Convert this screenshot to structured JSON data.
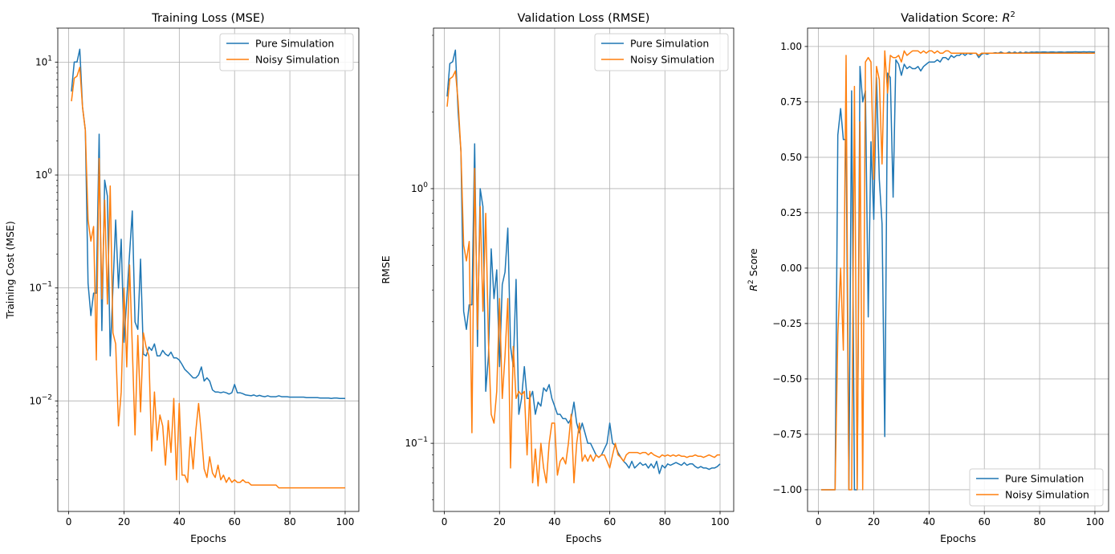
{
  "colors": {
    "pure": "#1f77b4",
    "noisy": "#ff7f0e",
    "grid": "#b0b0b0"
  },
  "chart_data": [
    {
      "type": "line",
      "title": "Training Loss (MSE)",
      "xlabel": "Epochs",
      "ylabel": "Training Cost (MSE)",
      "yscale": "log",
      "xlim": [
        -3.95,
        104.95
      ],
      "ylim": [
        0.00105,
        20
      ],
      "xticks": [
        0,
        20,
        40,
        60,
        80,
        100
      ],
      "yticks": [
        -2,
        -1,
        0,
        1
      ],
      "ytick_format": "power10",
      "grid": true,
      "legend": "top-right",
      "x_start": 1,
      "series": [
        {
          "name": "Pure Simulation",
          "values": [
            5.5,
            10,
            10,
            13,
            4,
            2.5,
            0.11,
            0.057,
            0.09,
            0.09,
            2.3,
            0.042,
            0.9,
            0.65,
            0.025,
            0.1,
            0.4,
            0.1,
            0.27,
            0.033,
            0.08,
            0.2,
            0.48,
            0.05,
            0.043,
            0.18,
            0.026,
            0.025,
            0.03,
            0.028,
            0.032,
            0.025,
            0.025,
            0.028,
            0.026,
            0.025,
            0.027,
            0.024,
            0.024,
            0.023,
            0.021,
            0.019,
            0.018,
            0.017,
            0.016,
            0.016,
            0.017,
            0.02,
            0.015,
            0.016,
            0.015,
            0.0125,
            0.012,
            0.012,
            0.0118,
            0.012,
            0.0118,
            0.0115,
            0.0118,
            0.014,
            0.0118,
            0.0118,
            0.0116,
            0.0113,
            0.0112,
            0.0111,
            0.0113,
            0.011,
            0.0112,
            0.011,
            0.0109,
            0.0111,
            0.0109,
            0.0109,
            0.0109,
            0.0111,
            0.0109,
            0.0109,
            0.0109,
            0.0108,
            0.0108,
            0.0108,
            0.0108,
            0.0108,
            0.0108,
            0.0107,
            0.0107,
            0.0107,
            0.0107,
            0.0107,
            0.0106,
            0.0106,
            0.0106,
            0.0106,
            0.0105,
            0.0106,
            0.0106,
            0.0105,
            0.0105,
            0.0105
          ]
        },
        {
          "name": "Noisy Simulation",
          "values": [
            4.5,
            7.2,
            7.5,
            9,
            4,
            2.5,
            0.4,
            0.26,
            0.35,
            0.023,
            1.4,
            0.08,
            0.6,
            0.072,
            0.8,
            0.04,
            0.032,
            0.006,
            0.012,
            0.1,
            0.02,
            0.16,
            0.03,
            0.005,
            0.038,
            0.008,
            0.04,
            0.03,
            0.025,
            0.0036,
            0.012,
            0.0045,
            0.0075,
            0.006,
            0.0027,
            0.0067,
            0.0035,
            0.0105,
            0.002,
            0.0095,
            0.0022,
            0.0022,
            0.0019,
            0.0048,
            0.0025,
            0.0055,
            0.0095,
            0.005,
            0.0025,
            0.0021,
            0.0032,
            0.0023,
            0.0021,
            0.0027,
            0.002,
            0.0022,
            0.0019,
            0.0021,
            0.0019,
            0.002,
            0.0019,
            0.0019,
            0.002,
            0.0019,
            0.0019,
            0.0018,
            0.0018,
            0.0018,
            0.0018,
            0.0018,
            0.0018,
            0.0018,
            0.0018,
            0.0018,
            0.0018,
            0.0017,
            0.0017,
            0.0017,
            0.0017,
            0.0017,
            0.0017,
            0.0017,
            0.0017,
            0.0017,
            0.0017,
            0.0017,
            0.0017,
            0.0017,
            0.0017,
            0.0017,
            0.0017,
            0.0017,
            0.0017,
            0.0017,
            0.0017,
            0.0017,
            0.0017,
            0.0017,
            0.0017,
            0.0017
          ]
        }
      ]
    },
    {
      "type": "line",
      "title": "Validation Loss (RMSE)",
      "xlabel": "Epochs",
      "ylabel": "RMSE",
      "yscale": "log",
      "xlim": [
        -3.95,
        104.95
      ],
      "ylim": [
        0.054,
        4.27
      ],
      "xticks": [
        0,
        20,
        40,
        60,
        80,
        100
      ],
      "yticks": [
        -1,
        0
      ],
      "ytick_format": "power10",
      "grid": true,
      "legend": "top-right",
      "x_start": 1,
      "series": [
        {
          "name": "Pure Simulation",
          "values": [
            2.3,
            3.1,
            3.15,
            3.5,
            2.0,
            1.4,
            0.33,
            0.28,
            0.35,
            0.35,
            1.5,
            0.24,
            1.0,
            0.85,
            0.16,
            0.22,
            0.58,
            0.37,
            0.48,
            0.2,
            0.42,
            0.47,
            0.7,
            0.24,
            0.2,
            0.44,
            0.13,
            0.15,
            0.2,
            0.15,
            0.15,
            0.16,
            0.13,
            0.145,
            0.14,
            0.165,
            0.16,
            0.17,
            0.15,
            0.14,
            0.13,
            0.13,
            0.125,
            0.125,
            0.12,
            0.125,
            0.145,
            0.12,
            0.11,
            0.12,
            0.11,
            0.1,
            0.1,
            0.095,
            0.09,
            0.088,
            0.09,
            0.095,
            0.1,
            0.12,
            0.1,
            0.098,
            0.092,
            0.088,
            0.085,
            0.083,
            0.08,
            0.085,
            0.08,
            0.082,
            0.084,
            0.082,
            0.083,
            0.08,
            0.083,
            0.08,
            0.085,
            0.076,
            0.082,
            0.08,
            0.083,
            0.082,
            0.083,
            0.084,
            0.083,
            0.082,
            0.084,
            0.082,
            0.083,
            0.083,
            0.081,
            0.08,
            0.081,
            0.08,
            0.08,
            0.079,
            0.08,
            0.08,
            0.081,
            0.083
          ]
        },
        {
          "name": "Noisy Simulation",
          "values": [
            2.1,
            2.7,
            2.75,
            2.9,
            2.2,
            1.4,
            0.6,
            0.52,
            0.62,
            0.11,
            1.2,
            0.28,
            0.85,
            0.33,
            0.8,
            0.25,
            0.13,
            0.12,
            0.16,
            0.37,
            0.15,
            0.22,
            0.37,
            0.08,
            0.24,
            0.15,
            0.16,
            0.155,
            0.16,
            0.09,
            0.16,
            0.07,
            0.095,
            0.068,
            0.1,
            0.08,
            0.07,
            0.1,
            0.12,
            0.12,
            0.075,
            0.085,
            0.088,
            0.083,
            0.1,
            0.13,
            0.07,
            0.1,
            0.12,
            0.085,
            0.09,
            0.085,
            0.09,
            0.085,
            0.09,
            0.088,
            0.09,
            0.09,
            0.085,
            0.08,
            0.09,
            0.1,
            0.09,
            0.088,
            0.085,
            0.09,
            0.092,
            0.092,
            0.092,
            0.092,
            0.091,
            0.092,
            0.092,
            0.09,
            0.092,
            0.09,
            0.089,
            0.088,
            0.09,
            0.089,
            0.09,
            0.089,
            0.09,
            0.089,
            0.09,
            0.089,
            0.089,
            0.088,
            0.089,
            0.089,
            0.09,
            0.089,
            0.089,
            0.088,
            0.089,
            0.09,
            0.089,
            0.088,
            0.09,
            0.09
          ]
        }
      ]
    },
    {
      "type": "line",
      "title": "Validation Score: R",
      "title_sup": "2",
      "xlabel": "Epochs",
      "ylabel": "R",
      "ylabel_sup": "2",
      "ylabel_suffix": " Score",
      "yscale": "linear",
      "xlim": [
        -3.95,
        104.95
      ],
      "ylim": [
        -1.098,
        1.083
      ],
      "xticks": [
        0,
        20,
        40,
        60,
        80,
        100
      ],
      "yticks": [
        -1.0,
        -0.75,
        -0.5,
        -0.25,
        0.0,
        0.25,
        0.5,
        0.75,
        1.0
      ],
      "ytick_format": "fixed2",
      "grid": true,
      "legend": "bottom-right",
      "x_start": 1,
      "series": [
        {
          "name": "Pure Simulation",
          "values": [
            -1,
            -1,
            -1,
            -1,
            -1,
            -1,
            0.6,
            0.72,
            0.58,
            0.58,
            -1,
            0.8,
            -1,
            -1,
            0.91,
            0.75,
            0.8,
            -0.22,
            0.57,
            0.22,
            0.86,
            0.4,
            0.2,
            -0.76,
            0.88,
            0.86,
            0.32,
            0.94,
            0.92,
            0.87,
            0.92,
            0.9,
            0.91,
            0.9,
            0.9,
            0.91,
            0.89,
            0.91,
            0.92,
            0.93,
            0.93,
            0.93,
            0.94,
            0.93,
            0.95,
            0.95,
            0.94,
            0.96,
            0.95,
            0.96,
            0.96,
            0.97,
            0.96,
            0.97,
            0.965,
            0.97,
            0.97,
            0.95,
            0.965,
            0.97,
            0.965,
            0.97,
            0.97,
            0.972,
            0.97,
            0.975,
            0.97,
            0.97,
            0.975,
            0.97,
            0.975,
            0.97,
            0.975,
            0.97,
            0.975,
            0.972,
            0.975,
            0.974,
            0.975,
            0.974,
            0.975,
            0.975,
            0.974,
            0.975,
            0.975,
            0.974,
            0.975,
            0.975,
            0.974,
            0.975,
            0.975,
            0.975,
            0.976,
            0.975,
            0.975,
            0.976,
            0.975,
            0.976,
            0.975,
            0.975
          ]
        },
        {
          "name": "Noisy Simulation",
          "values": [
            -1,
            -1,
            -1,
            -1,
            -1,
            -1,
            -0.3,
            0.0,
            -0.37,
            0.96,
            -1,
            -1,
            0.82,
            -1,
            0.66,
            -1,
            0.93,
            0.95,
            0.93,
            0.4,
            0.91,
            0.85,
            0.47,
            0.98,
            0.79,
            0.96,
            0.95,
            0.95,
            0.96,
            0.93,
            0.98,
            0.96,
            0.97,
            0.98,
            0.98,
            0.98,
            0.97,
            0.98,
            0.97,
            0.98,
            0.98,
            0.97,
            0.98,
            0.97,
            0.97,
            0.98,
            0.98,
            0.97,
            0.97,
            0.97,
            0.97,
            0.97,
            0.97,
            0.97,
            0.97,
            0.97,
            0.97,
            0.96,
            0.97,
            0.97,
            0.97,
            0.97,
            0.97,
            0.97,
            0.97,
            0.97,
            0.97,
            0.97,
            0.97,
            0.97,
            0.97,
            0.97,
            0.97,
            0.97,
            0.97,
            0.97,
            0.97,
            0.97,
            0.97,
            0.97,
            0.97,
            0.97,
            0.97,
            0.97,
            0.97,
            0.97,
            0.97,
            0.97,
            0.97,
            0.97,
            0.97,
            0.97,
            0.97,
            0.97,
            0.97,
            0.97,
            0.97,
            0.97,
            0.97,
            0.97
          ]
        }
      ]
    }
  ]
}
